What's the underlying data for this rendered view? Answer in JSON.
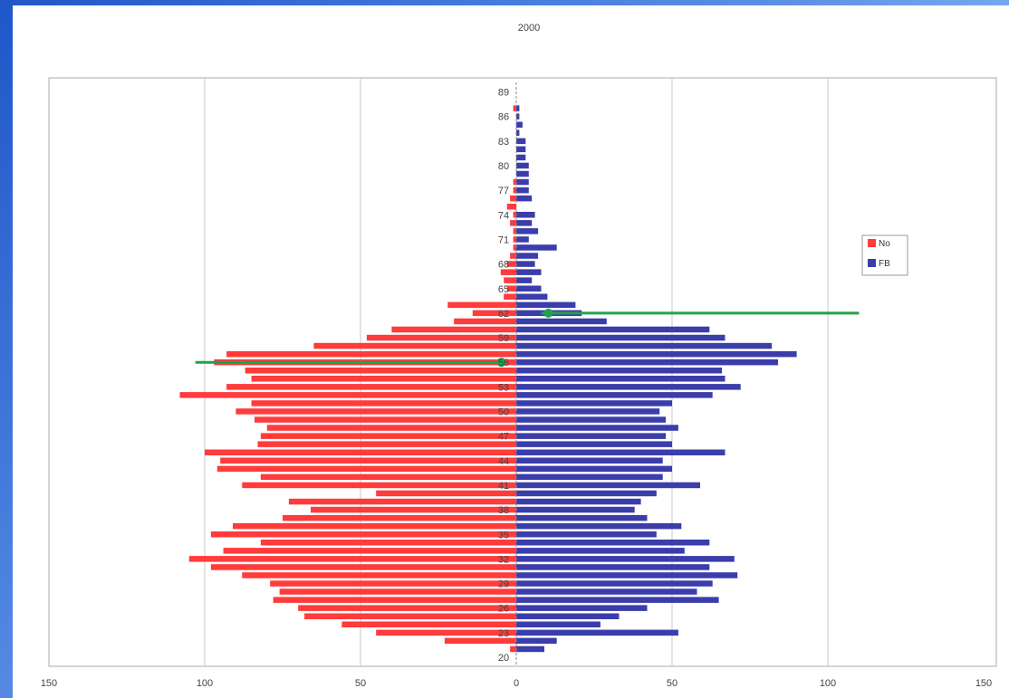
{
  "chart_data": {
    "type": "bar",
    "orientation": "horizontal",
    "title": "2000",
    "xlim": [
      -150,
      150
    ],
    "x_ticks": [
      -150,
      -100,
      -50,
      0,
      50,
      100,
      150
    ],
    "x_tick_labels": [
      "150",
      "100",
      "50",
      "0",
      "50",
      "100",
      "150"
    ],
    "y_tick_labels": [
      "20",
      "23",
      "26",
      "29",
      "32",
      "35",
      "38",
      "41",
      "44",
      "47",
      "50",
      "53",
      "56",
      "59",
      "62",
      "65",
      "68",
      "71",
      "74",
      "77",
      "80",
      "83",
      "86",
      "89"
    ],
    "categories": [
      21,
      22,
      23,
      24,
      25,
      26,
      27,
      28,
      29,
      30,
      31,
      32,
      33,
      34,
      35,
      36,
      37,
      38,
      39,
      40,
      41,
      42,
      43,
      44,
      45,
      46,
      47,
      48,
      49,
      50,
      51,
      52,
      53,
      54,
      55,
      56,
      57,
      58,
      59,
      60,
      61,
      62,
      63,
      64,
      65,
      66,
      67,
      68,
      69,
      70,
      71,
      72,
      73,
      74,
      75,
      76,
      77,
      78,
      79,
      80,
      81,
      82,
      83,
      84,
      85,
      86,
      87,
      88
    ],
    "series": [
      {
        "name": "No",
        "color": "#ff3b3b",
        "values": [
          -2,
          -23,
          -45,
          -56,
          -68,
          -70,
          -78,
          -76,
          -79,
          -88,
          -98,
          -105,
          -94,
          -82,
          -98,
          -91,
          -75,
          -66,
          -73,
          -45,
          -88,
          -82,
          -96,
          -95,
          -100,
          -83,
          -82,
          -80,
          -84,
          -90,
          -85,
          -108,
          -93,
          -85,
          -87,
          -97,
          -93,
          -65,
          -48,
          -40,
          -20,
          -14,
          -22,
          -4,
          -3,
          -4,
          -5,
          -3,
          -2,
          -1,
          -1,
          -1,
          -2,
          -1,
          -3,
          -2,
          -1,
          -1,
          0,
          0,
          0,
          0,
          0,
          0,
          0,
          0,
          -1,
          0
        ]
      },
      {
        "name": "FB",
        "color": "#3b3dab",
        "values": [
          9,
          13,
          52,
          27,
          33,
          42,
          65,
          58,
          63,
          71,
          62,
          70,
          54,
          62,
          45,
          53,
          42,
          38,
          40,
          45,
          59,
          47,
          50,
          47,
          67,
          50,
          48,
          52,
          48,
          46,
          50,
          63,
          72,
          67,
          66,
          84,
          90,
          82,
          67,
          62,
          29,
          21,
          19,
          10,
          8,
          5,
          8,
          6,
          7,
          13,
          4,
          7,
          5,
          6,
          0,
          5,
          4,
          4,
          4,
          4,
          3,
          3,
          3,
          1,
          2,
          1,
          1,
          0
        ]
      }
    ],
    "annotations": [
      {
        "kind": "green-line",
        "y": 62,
        "x_from": 8,
        "x_to": 110,
        "color": "#1fa34a"
      },
      {
        "kind": "green-line",
        "y": 56,
        "x_from": -103,
        "x_to": -3,
        "color": "#1fa34a"
      }
    ],
    "legend_position": "right",
    "grid": true
  }
}
